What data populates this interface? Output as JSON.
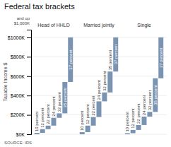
{
  "chart_data": {
    "type": "bar",
    "title": "Federal tax brackets",
    "y_label": "Taxable Income $",
    "source": "SOURCE: IRS",
    "annotation": "and up\n$1,000K",
    "color": "#7a93b0",
    "categories": [
      "10 percent",
      "12 percent",
      "22 percent",
      "24 percent",
      "32 percent",
      "35 percent",
      "37 percent"
    ],
    "series": [
      {
        "name": "Head of HHLD",
        "bottoms": [
          0,
          13850,
          52850,
          89075,
          170050,
          215950,
          539900
        ],
        "values": [
          13850,
          52850,
          89075,
          170050,
          215950,
          539900,
          1000000
        ]
      },
      {
        "name": "Married jointly",
        "bottoms": [
          0,
          22000,
          89075,
          178150,
          340100,
          431900,
          647850
        ],
        "values": [
          22000,
          89075,
          178150,
          340100,
          431900,
          647850,
          1000000
        ]
      },
      {
        "name": "Single",
        "bottoms": [
          0,
          11000,
          44725,
          95375,
          182050,
          231250,
          578125
        ],
        "values": [
          11000,
          44725,
          95375,
          182050,
          231250,
          578125,
          1000000
        ]
      }
    ],
    "ylim": [
      0,
      1080000
    ],
    "yticks": [
      {
        "value": 0,
        "label": "$0K"
      },
      {
        "value": 200000,
        "label": "$200K"
      },
      {
        "value": 400000,
        "label": "$400K"
      },
      {
        "value": 600000,
        "label": "$600K"
      },
      {
        "value": 800000,
        "label": "$800K"
      },
      {
        "value": 1000000,
        "label": "$1000K"
      }
    ],
    "grid": true,
    "tick_labels": "y"
  }
}
